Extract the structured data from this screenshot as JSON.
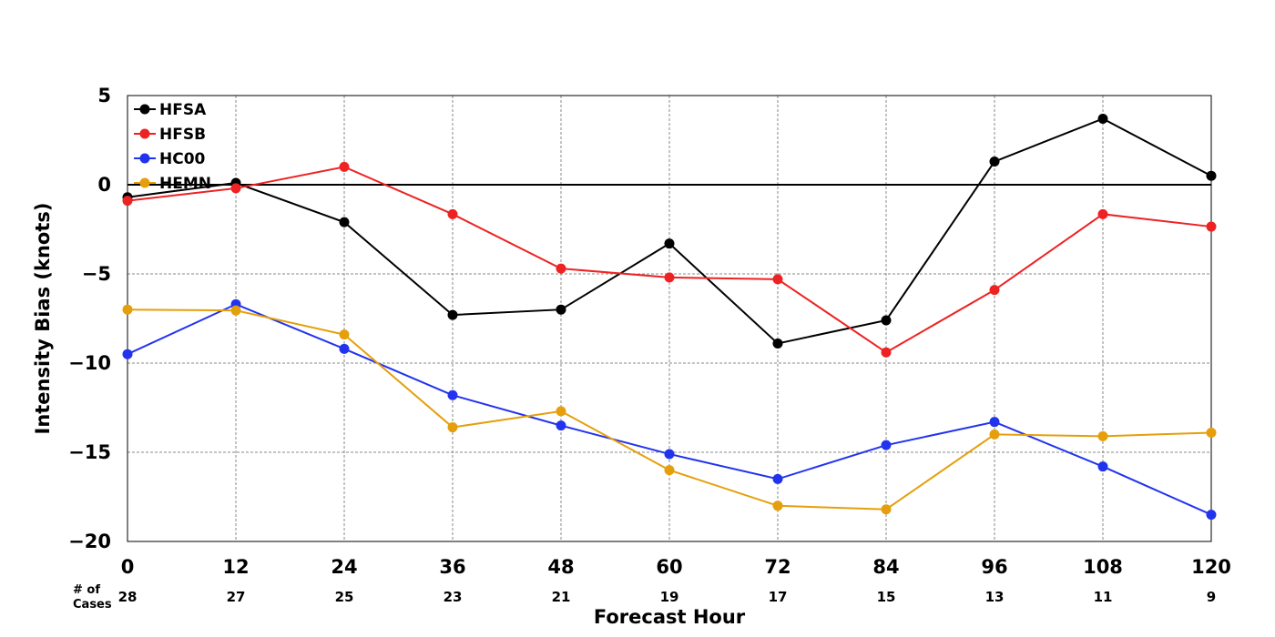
{
  "chart_data": {
    "type": "line",
    "xlabel": "Forecast Hour",
    "ylabel": "Intensity Bias (knots)",
    "xlim": [
      0,
      120
    ],
    "ylim": [
      -20,
      5
    ],
    "x_ticks": [
      "0",
      "12",
      "24",
      "36",
      "48",
      "60",
      "72",
      "84",
      "96",
      "108",
      "120"
    ],
    "y_ticks": [
      "5",
      "0",
      "−5",
      "−10",
      "−15",
      "−20"
    ],
    "grid": true,
    "legend_position": "top-left",
    "x": [
      0,
      12,
      24,
      36,
      48,
      60,
      72,
      84,
      96,
      108,
      120
    ],
    "cases_label": "# of\nCases",
    "cases": [
      "28",
      "27",
      "25",
      "23",
      "21",
      "19",
      "17",
      "15",
      "13",
      "11",
      "9"
    ],
    "series": [
      {
        "name": "HFSA",
        "color": "#000000",
        "values": [
          -0.7,
          0.1,
          -2.1,
          -7.3,
          -7.0,
          -3.3,
          -8.9,
          -7.6,
          1.3,
          3.7,
          0.5
        ]
      },
      {
        "name": "HFSB",
        "color": "#ee2222",
        "values": [
          -0.9,
          -0.2,
          1.0,
          -1.65,
          -4.7,
          -5.2,
          -5.3,
          -9.4,
          -5.9,
          -1.65,
          -2.35
        ]
      },
      {
        "name": "HC00",
        "color": "#2233ee",
        "values": [
          -9.5,
          -6.7,
          -9.2,
          -11.8,
          -13.5,
          -15.1,
          -16.5,
          -14.6,
          -13.3,
          -15.8,
          -18.5
        ]
      },
      {
        "name": "HEMN",
        "color": "#e59f0c",
        "values": [
          -7.0,
          -7.05,
          -8.4,
          -13.6,
          -12.7,
          -16.0,
          -18.0,
          -18.2,
          -14.0,
          -14.1,
          -13.9
        ]
      }
    ]
  }
}
